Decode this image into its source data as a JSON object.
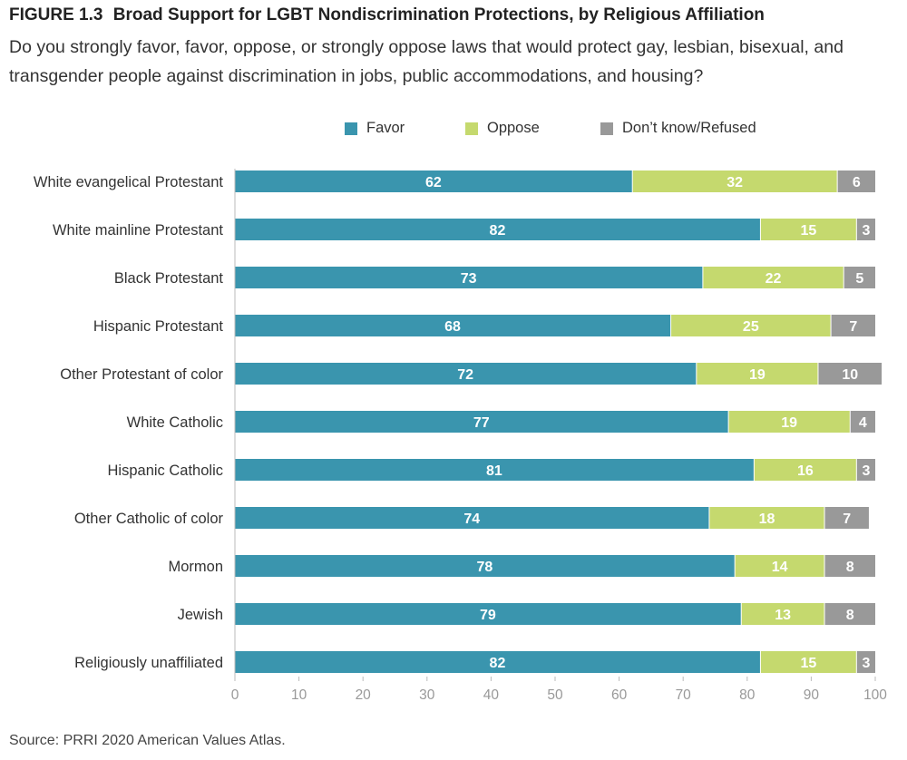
{
  "header": {
    "figure_label": "FIGURE 1.3",
    "title": "Broad Support for LGBT Nondiscrimination Protections, by Religious Affiliation",
    "subtitle": "Do you strongly favor, favor, oppose, or strongly oppose laws that would protect gay, lesbian, bisexual, and transgender people against discrimination in jobs, public accommodations, and housing?"
  },
  "source": "Source: PRRI 2020 American Values Atlas.",
  "chart_data": {
    "type": "bar",
    "orientation": "horizontal",
    "stacked": true,
    "categories": [
      "White evangelical Protestant",
      "White mainline Protestant",
      "Black Protestant",
      "Hispanic Protestant",
      "Other Protestant of color",
      "White Catholic",
      "Hispanic Catholic",
      "Other Catholic of color",
      "Mormon",
      "Jewish",
      "Religiously unaffiliated"
    ],
    "series": [
      {
        "name": "Favor",
        "color": "#3a95ae",
        "values": [
          62,
          82,
          73,
          68,
          72,
          77,
          81,
          74,
          78,
          79,
          82
        ]
      },
      {
        "name": "Oppose",
        "color": "#c5d96e",
        "values": [
          32,
          15,
          22,
          25,
          19,
          19,
          16,
          18,
          14,
          13,
          15
        ]
      },
      {
        "name": "Don’t know/Refused",
        "color": "#999999",
        "values": [
          6,
          3,
          5,
          7,
          10,
          4,
          3,
          7,
          8,
          8,
          3
        ]
      }
    ],
    "xlim": [
      0,
      100
    ],
    "xticks": [
      0,
      10,
      20,
      30,
      40,
      50,
      60,
      70,
      80,
      90,
      100
    ],
    "xlabel": "",
    "ylabel": "",
    "legend_position": "top",
    "grid": false,
    "data_labels": true
  }
}
